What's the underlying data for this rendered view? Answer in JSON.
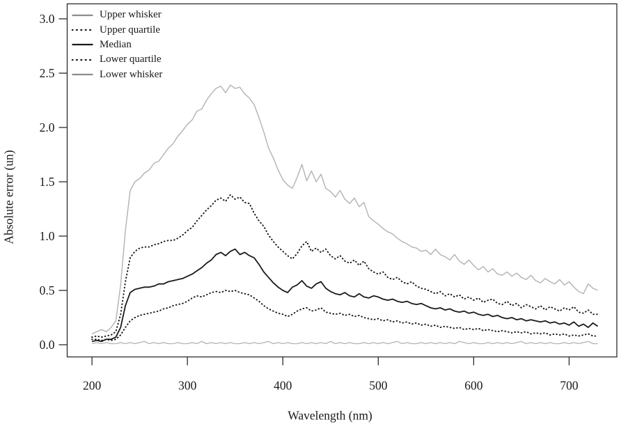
{
  "chart_data": {
    "type": "line",
    "title": "",
    "xlabel": "Wavelength (nm)",
    "ylabel": "Absolute error (un)",
    "xlim": [
      174,
      750
    ],
    "ylim": [
      -0.112,
      3.138
    ],
    "x_ticks": [
      200,
      300,
      400,
      500,
      600,
      700
    ],
    "y_ticks": [
      "0.0",
      "0.5",
      "1.0",
      "1.5",
      "2.0",
      "2.5",
      "3.0"
    ],
    "grid": false,
    "legend_position": "top-left",
    "frame_color": "#2b2b2b",
    "x": [
      200,
      205,
      210,
      215,
      220,
      225,
      230,
      235,
      240,
      245,
      250,
      255,
      260,
      265,
      270,
      275,
      280,
      285,
      290,
      295,
      300,
      305,
      310,
      315,
      320,
      325,
      330,
      335,
      340,
      345,
      350,
      355,
      360,
      365,
      370,
      375,
      380,
      385,
      390,
      395,
      400,
      405,
      410,
      415,
      420,
      425,
      430,
      435,
      440,
      445,
      450,
      455,
      460,
      465,
      470,
      475,
      480,
      485,
      490,
      495,
      500,
      505,
      510,
      515,
      520,
      525,
      530,
      535,
      540,
      545,
      550,
      555,
      560,
      565,
      570,
      575,
      580,
      585,
      590,
      595,
      600,
      605,
      610,
      615,
      620,
      625,
      630,
      635,
      640,
      645,
      650,
      655,
      660,
      665,
      670,
      675,
      680,
      685,
      690,
      695,
      700,
      705,
      710,
      715,
      720,
      725,
      730
    ],
    "series": [
      {
        "id": "upper-whisker",
        "name": "Upper whisker",
        "color": "#b2b2b2",
        "legend_color": "#8c8c8c",
        "width": 1.4,
        "dash": null,
        "values": [
          0.1,
          0.12,
          0.14,
          0.12,
          0.16,
          0.22,
          0.55,
          1.05,
          1.42,
          1.5,
          1.53,
          1.58,
          1.61,
          1.67,
          1.69,
          1.75,
          1.81,
          1.85,
          1.92,
          1.97,
          2.03,
          2.07,
          2.15,
          2.17,
          2.25,
          2.31,
          2.36,
          2.38,
          2.32,
          2.39,
          2.36,
          2.37,
          2.31,
          2.27,
          2.21,
          2.09,
          1.96,
          1.81,
          1.72,
          1.61,
          1.52,
          1.47,
          1.44,
          1.54,
          1.66,
          1.51,
          1.6,
          1.5,
          1.57,
          1.44,
          1.41,
          1.36,
          1.42,
          1.34,
          1.3,
          1.35,
          1.27,
          1.31,
          1.18,
          1.14,
          1.11,
          1.07,
          1.04,
          1.02,
          0.98,
          0.95,
          0.93,
          0.9,
          0.89,
          0.86,
          0.87,
          0.83,
          0.88,
          0.83,
          0.81,
          0.78,
          0.83,
          0.77,
          0.74,
          0.78,
          0.73,
          0.69,
          0.72,
          0.67,
          0.7,
          0.65,
          0.64,
          0.67,
          0.63,
          0.66,
          0.62,
          0.6,
          0.64,
          0.59,
          0.57,
          0.61,
          0.58,
          0.56,
          0.6,
          0.55,
          0.58,
          0.53,
          0.49,
          0.47,
          0.56,
          0.52,
          0.5
        ]
      },
      {
        "id": "upper-quartile",
        "name": "Upper quartile",
        "color": "#1a1a1a",
        "legend_color": "#1a1a1a",
        "width": 2,
        "dash": "0.6 4.2",
        "values": [
          0.07,
          0.08,
          0.07,
          0.08,
          0.09,
          0.12,
          0.28,
          0.58,
          0.8,
          0.86,
          0.89,
          0.9,
          0.9,
          0.92,
          0.93,
          0.95,
          0.96,
          0.96,
          0.98,
          1.01,
          1.05,
          1.08,
          1.14,
          1.19,
          1.24,
          1.28,
          1.33,
          1.35,
          1.32,
          1.38,
          1.34,
          1.36,
          1.31,
          1.3,
          1.21,
          1.14,
          1.09,
          1.01,
          0.95,
          0.9,
          0.86,
          0.82,
          0.79,
          0.84,
          0.91,
          0.95,
          0.86,
          0.89,
          0.85,
          0.88,
          0.82,
          0.79,
          0.82,
          0.77,
          0.75,
          0.78,
          0.73,
          0.77,
          0.7,
          0.67,
          0.65,
          0.67,
          0.62,
          0.6,
          0.62,
          0.58,
          0.56,
          0.58,
          0.54,
          0.52,
          0.51,
          0.49,
          0.47,
          0.49,
          0.45,
          0.47,
          0.44,
          0.46,
          0.42,
          0.44,
          0.41,
          0.43,
          0.39,
          0.41,
          0.42,
          0.38,
          0.37,
          0.4,
          0.36,
          0.38,
          0.34,
          0.37,
          0.35,
          0.33,
          0.36,
          0.32,
          0.35,
          0.33,
          0.31,
          0.34,
          0.32,
          0.35,
          0.3,
          0.29,
          0.32,
          0.28,
          0.28
        ]
      },
      {
        "id": "median",
        "name": "Median",
        "color": "#1a1a1a",
        "legend_color": "#1a1a1a",
        "width": 1.8,
        "dash": null,
        "values": [
          0.03,
          0.04,
          0.03,
          0.05,
          0.05,
          0.07,
          0.16,
          0.36,
          0.48,
          0.51,
          0.52,
          0.53,
          0.53,
          0.54,
          0.56,
          0.56,
          0.58,
          0.59,
          0.6,
          0.61,
          0.63,
          0.65,
          0.68,
          0.71,
          0.75,
          0.78,
          0.83,
          0.85,
          0.82,
          0.86,
          0.88,
          0.83,
          0.85,
          0.82,
          0.8,
          0.74,
          0.67,
          0.62,
          0.57,
          0.53,
          0.5,
          0.48,
          0.53,
          0.55,
          0.59,
          0.54,
          0.52,
          0.56,
          0.58,
          0.52,
          0.49,
          0.47,
          0.46,
          0.48,
          0.45,
          0.44,
          0.47,
          0.44,
          0.43,
          0.45,
          0.44,
          0.42,
          0.41,
          0.42,
          0.4,
          0.39,
          0.4,
          0.38,
          0.37,
          0.38,
          0.36,
          0.34,
          0.33,
          0.34,
          0.32,
          0.33,
          0.31,
          0.3,
          0.31,
          0.29,
          0.3,
          0.28,
          0.27,
          0.28,
          0.26,
          0.27,
          0.25,
          0.24,
          0.25,
          0.23,
          0.24,
          0.22,
          0.23,
          0.22,
          0.21,
          0.22,
          0.2,
          0.21,
          0.19,
          0.2,
          0.18,
          0.21,
          0.17,
          0.19,
          0.16,
          0.2,
          0.17
        ]
      },
      {
        "id": "lower-quartile",
        "name": "Lower quartile",
        "color": "#1a1a1a",
        "legend_color": "#1a1a1a",
        "width": 2,
        "dash": "0.6 4.2",
        "values": [
          0.05,
          0.05,
          0.04,
          0.05,
          0.04,
          0.05,
          0.09,
          0.16,
          0.22,
          0.25,
          0.27,
          0.28,
          0.29,
          0.3,
          0.31,
          0.33,
          0.34,
          0.36,
          0.37,
          0.38,
          0.4,
          0.43,
          0.45,
          0.44,
          0.46,
          0.48,
          0.49,
          0.48,
          0.5,
          0.49,
          0.5,
          0.48,
          0.47,
          0.46,
          0.43,
          0.4,
          0.36,
          0.33,
          0.31,
          0.29,
          0.28,
          0.26,
          0.28,
          0.31,
          0.33,
          0.34,
          0.31,
          0.32,
          0.34,
          0.3,
          0.29,
          0.28,
          0.29,
          0.27,
          0.28,
          0.26,
          0.27,
          0.25,
          0.24,
          0.23,
          0.24,
          0.22,
          0.23,
          0.21,
          0.22,
          0.2,
          0.21,
          0.19,
          0.2,
          0.18,
          0.19,
          0.17,
          0.18,
          0.16,
          0.17,
          0.16,
          0.15,
          0.16,
          0.14,
          0.15,
          0.14,
          0.15,
          0.13,
          0.14,
          0.13,
          0.12,
          0.13,
          0.12,
          0.11,
          0.12,
          0.11,
          0.12,
          0.1,
          0.11,
          0.1,
          0.11,
          0.09,
          0.1,
          0.09,
          0.1,
          0.08,
          0.09,
          0.08,
          0.09,
          0.1,
          0.08,
          0.08
        ]
      },
      {
        "id": "lower-whisker",
        "name": "Lower whisker",
        "color": "#b2b2b2",
        "legend_color": "#8c8c8c",
        "width": 1.3,
        "dash": null,
        "values": [
          0.01,
          0.02,
          0.01,
          0.02,
          0.01,
          0.01,
          0.02,
          0.01,
          0.02,
          0.01,
          0.02,
          0.03,
          0.01,
          0.02,
          0.01,
          0.02,
          0.01,
          0.01,
          0.02,
          0.01,
          0.01,
          0.02,
          0.01,
          0.03,
          0.01,
          0.02,
          0.01,
          0.02,
          0.01,
          0.02,
          0.01,
          0.01,
          0.02,
          0.01,
          0.02,
          0.01,
          0.02,
          0.03,
          0.01,
          0.02,
          0.01,
          0.02,
          0.01,
          0.01,
          0.02,
          0.01,
          0.02,
          0.01,
          0.02,
          0.01,
          0.03,
          0.01,
          0.02,
          0.01,
          0.02,
          0.01,
          0.01,
          0.02,
          0.01,
          0.02,
          0.01,
          0.02,
          0.01,
          0.02,
          0.03,
          0.01,
          0.02,
          0.01,
          0.01,
          0.02,
          0.01,
          0.02,
          0.01,
          0.02,
          0.01,
          0.02,
          0.01,
          0.03,
          0.02,
          0.01,
          0.02,
          0.01,
          0.01,
          0.02,
          0.01,
          0.02,
          0.01,
          0.02,
          0.01,
          0.02,
          0.03,
          0.01,
          0.02,
          0.01,
          0.02,
          0.01,
          0.02,
          0.01,
          0.01,
          0.02,
          0.01,
          0.02,
          0.01,
          0.02,
          0.03,
          0.01,
          0.01
        ]
      }
    ]
  }
}
